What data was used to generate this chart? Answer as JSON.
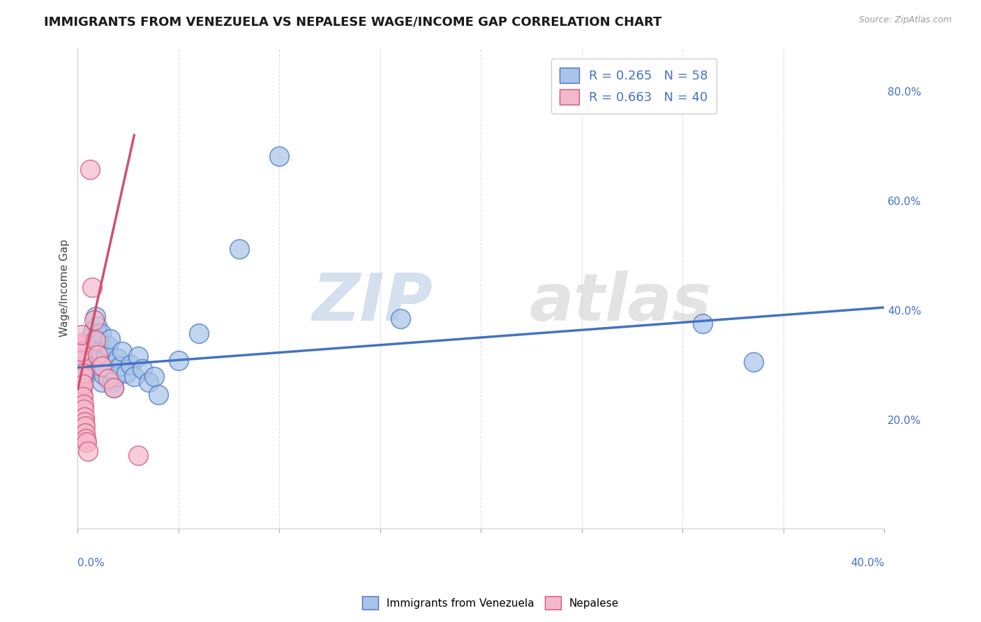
{
  "title": "IMMIGRANTS FROM VENEZUELA VS NEPALESE WAGE/INCOME GAP CORRELATION CHART",
  "source": "Source: ZipAtlas.com",
  "ylabel": "Wage/Income Gap",
  "right_yticks": [
    0.0,
    0.2,
    0.4,
    0.6,
    0.8
  ],
  "right_yticklabels": [
    "",
    "20.0%",
    "40.0%",
    "60.0%",
    "80.0%"
  ],
  "legend_blue_R": "0.265",
  "legend_blue_N": "58",
  "legend_pink_R": "0.663",
  "legend_pink_N": "40",
  "legend_label_blue": "Immigrants from Venezuela",
  "legend_label_pink": "Nepalese",
  "blue_color": "#a8c4e8",
  "pink_color": "#f4b8cc",
  "trend_blue": "#4472c4",
  "trend_pink": "#d05070",
  "watermark": "ZIPatlas",
  "watermark_blue": "ZIP",
  "watermark_gray": "atlas",
  "blue_dots": [
    [
      0.0008,
      0.305
    ],
    [
      0.001,
      0.315
    ],
    [
      0.0012,
      0.298
    ],
    [
      0.0015,
      0.32
    ],
    [
      0.0018,
      0.31
    ],
    [
      0.002,
      0.295
    ],
    [
      0.0022,
      0.325
    ],
    [
      0.0025,
      0.308
    ],
    [
      0.0028,
      0.312
    ],
    [
      0.003,
      0.29
    ],
    [
      0.0032,
      0.318
    ],
    [
      0.0035,
      0.302
    ],
    [
      0.0038,
      0.328
    ],
    [
      0.004,
      0.315
    ],
    [
      0.0042,
      0.295
    ],
    [
      0.0045,
      0.34
    ],
    [
      0.0048,
      0.322
    ],
    [
      0.005,
      0.285
    ],
    [
      0.0055,
      0.308
    ],
    [
      0.0058,
      0.332
    ],
    [
      0.006,
      0.298
    ],
    [
      0.0065,
      0.35
    ],
    [
      0.007,
      0.318
    ],
    [
      0.0075,
      0.362
    ],
    [
      0.008,
      0.335
    ],
    [
      0.0085,
      0.345
    ],
    [
      0.009,
      0.388
    ],
    [
      0.0095,
      0.37
    ],
    [
      0.01,
      0.358
    ],
    [
      0.0105,
      0.342
    ],
    [
      0.011,
      0.325
    ],
    [
      0.0115,
      0.358
    ],
    [
      0.012,
      0.268
    ],
    [
      0.0125,
      0.282
    ],
    [
      0.013,
      0.295
    ],
    [
      0.014,
      0.318
    ],
    [
      0.015,
      0.335
    ],
    [
      0.016,
      0.348
    ],
    [
      0.017,
      0.268
    ],
    [
      0.018,
      0.258
    ],
    [
      0.019,
      0.278
    ],
    [
      0.02,
      0.312
    ],
    [
      0.021,
      0.298
    ],
    [
      0.022,
      0.325
    ],
    [
      0.024,
      0.285
    ],
    [
      0.026,
      0.3
    ],
    [
      0.028,
      0.278
    ],
    [
      0.03,
      0.315
    ],
    [
      0.032,
      0.292
    ],
    [
      0.035,
      0.268
    ],
    [
      0.038,
      0.278
    ],
    [
      0.04,
      0.245
    ],
    [
      0.05,
      0.308
    ],
    [
      0.06,
      0.358
    ],
    [
      0.08,
      0.512
    ],
    [
      0.1,
      0.682
    ],
    [
      0.16,
      0.385
    ],
    [
      0.31,
      0.375
    ],
    [
      0.335,
      0.305
    ]
  ],
  "pink_dots": [
    [
      0.0005,
      0.308
    ],
    [
      0.0007,
      0.322
    ],
    [
      0.0008,
      0.315
    ],
    [
      0.0009,
      0.298
    ],
    [
      0.001,
      0.285
    ],
    [
      0.0011,
      0.335
    ],
    [
      0.0012,
      0.318
    ],
    [
      0.0013,
      0.302
    ],
    [
      0.0014,
      0.328
    ],
    [
      0.0015,
      0.312
    ],
    [
      0.0016,
      0.295
    ],
    [
      0.0017,
      0.34
    ],
    [
      0.0018,
      0.308
    ],
    [
      0.0019,
      0.325
    ],
    [
      0.002,
      0.268
    ],
    [
      0.0021,
      0.355
    ],
    [
      0.0022,
      0.278
    ],
    [
      0.0023,
      0.245
    ],
    [
      0.0024,
      0.258
    ],
    [
      0.0025,
      0.285
    ],
    [
      0.0026,
      0.265
    ],
    [
      0.0027,
      0.242
    ],
    [
      0.0028,
      0.228
    ],
    [
      0.003,
      0.218
    ],
    [
      0.0032,
      0.205
    ],
    [
      0.0034,
      0.195
    ],
    [
      0.0036,
      0.188
    ],
    [
      0.0038,
      0.175
    ],
    [
      0.004,
      0.165
    ],
    [
      0.0042,
      0.158
    ],
    [
      0.005,
      0.142
    ],
    [
      0.006,
      0.658
    ],
    [
      0.007,
      0.442
    ],
    [
      0.008,
      0.382
    ],
    [
      0.009,
      0.345
    ],
    [
      0.01,
      0.318
    ],
    [
      0.012,
      0.298
    ],
    [
      0.015,
      0.275
    ],
    [
      0.018,
      0.258
    ],
    [
      0.03,
      0.135
    ]
  ],
  "xlim": [
    0.0,
    0.4
  ],
  "ylim": [
    0.0,
    0.88
  ],
  "blue_trend_x": [
    0.0,
    0.4
  ],
  "blue_trend_y": [
    0.295,
    0.405
  ],
  "pink_trend_x": [
    0.0,
    0.028
  ],
  "pink_trend_y": [
    0.255,
    0.72
  ]
}
